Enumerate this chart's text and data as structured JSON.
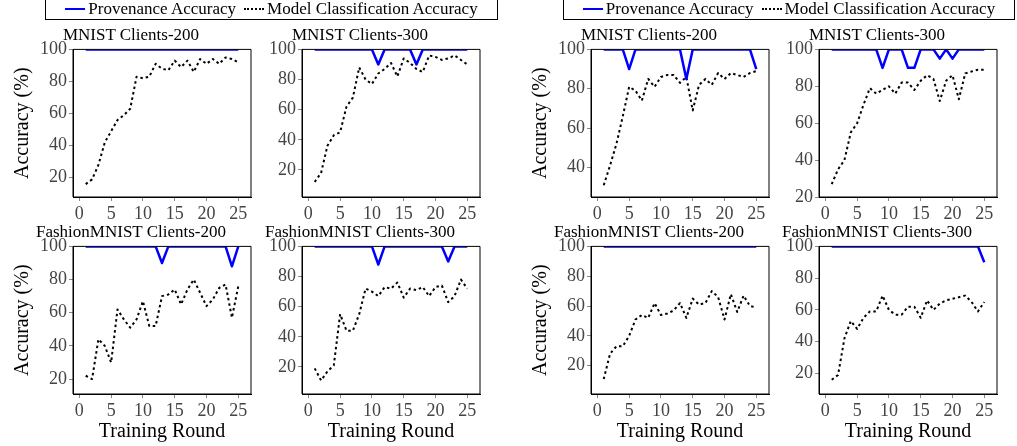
{
  "chart_data": [
    {
      "type": "line",
      "title": "MNIST Clients-200",
      "ylabel": "Accuracy (%)",
      "x": [
        1,
        2,
        3,
        4,
        5,
        6,
        7,
        8,
        9,
        10,
        11,
        12,
        13,
        14,
        15,
        16,
        17,
        18,
        19,
        20,
        21,
        22,
        23,
        24,
        25
      ],
      "xlim": [
        -1,
        27
      ],
      "xticks": [
        0,
        5,
        10,
        15,
        20,
        25
      ],
      "ylim": [
        8,
        100
      ],
      "yticks": [
        20,
        40,
        60,
        80,
        100
      ],
      "legend": "top",
      "marker": "none",
      "series": [
        {
          "name": "Provenance Accuracy",
          "color": "#0000ff",
          "line_style": "solid",
          "values": [
            100,
            100,
            100,
            100,
            100,
            100,
            100,
            100,
            100,
            100,
            100,
            100,
            100,
            100,
            100,
            100,
            100,
            100,
            100,
            100,
            100,
            100,
            100,
            100,
            100
          ]
        },
        {
          "name": "Model Classification Accuracy",
          "color": "#000000",
          "line_style": "dotted",
          "values": [
            16,
            19,
            28,
            42,
            49,
            56,
            59,
            63,
            83,
            82,
            83,
            91,
            88,
            87,
            93,
            89,
            93,
            86,
            94,
            91,
            94,
            91,
            95,
            94,
            92
          ]
        }
      ]
    },
    {
      "type": "line",
      "title": "MNIST Clients-300",
      "x": [
        1,
        2,
        3,
        4,
        5,
        6,
        7,
        8,
        9,
        10,
        11,
        12,
        13,
        14,
        15,
        16,
        17,
        18,
        19,
        20,
        21,
        22,
        23,
        24,
        25
      ],
      "xlim": [
        -1,
        27
      ],
      "xticks": [
        0,
        5,
        10,
        15,
        20,
        25
      ],
      "ylim": [
        2,
        100
      ],
      "yticks": [
        20,
        40,
        60,
        80,
        100
      ],
      "marker": "none",
      "series": [
        {
          "color": "#0000ff",
          "line_style": "solid",
          "values": [
            100,
            100,
            100,
            100,
            100,
            100,
            100,
            100,
            100,
            100,
            90,
            100,
            100,
            100,
            100,
            100,
            90,
            100,
            100,
            100,
            100,
            100,
            100,
            100,
            100
          ]
        },
        {
          "color": "#000000",
          "line_style": "dotted",
          "values": [
            12,
            18,
            36,
            43,
            45,
            62,
            68,
            88,
            80,
            77,
            84,
            87,
            91,
            82,
            94,
            91,
            87,
            85,
            96,
            95,
            93,
            94,
            96,
            93,
            90
          ]
        }
      ]
    },
    {
      "type": "line",
      "title": "MNIST Clients-200",
      "ylabel": "Accuracy (%)",
      "x": [
        1,
        2,
        3,
        4,
        5,
        6,
        7,
        8,
        9,
        10,
        11,
        12,
        13,
        14,
        15,
        16,
        17,
        18,
        19,
        20,
        21,
        22,
        23,
        24,
        25
      ],
      "xlim": [
        -1,
        27
      ],
      "xticks": [
        0,
        5,
        10,
        15,
        20,
        25
      ],
      "ylim": [
        25,
        100
      ],
      "yticks": [
        40,
        60,
        80,
        100
      ],
      "legend": "top",
      "marker": "none",
      "series": [
        {
          "name": "Provenance Accuracy",
          "color": "#0000ff",
          "line_style": "solid",
          "values": [
            100,
            100,
            100,
            100,
            90,
            100,
            100,
            100,
            100,
            100,
            100,
            100,
            100,
            85,
            100,
            100,
            100,
            100,
            100,
            100,
            100,
            100,
            100,
            100,
            90
          ]
        },
        {
          "name": "Model Classification Accuracy",
          "color": "#000000",
          "line_style": "dotted",
          "values": [
            31,
            41,
            52,
            66,
            81,
            79,
            74,
            85,
            81,
            86,
            87,
            87,
            83,
            86,
            69,
            82,
            85,
            82,
            88,
            85,
            88,
            87,
            86,
            88,
            89
          ]
        }
      ]
    },
    {
      "type": "line",
      "title": "MNIST Clients-300",
      "x": [
        1,
        2,
        3,
        4,
        5,
        6,
        7,
        8,
        9,
        10,
        11,
        12,
        13,
        14,
        15,
        16,
        17,
        18,
        19,
        20,
        21,
        22,
        23,
        24,
        25
      ],
      "xlim": [
        -1,
        27
      ],
      "xticks": [
        0,
        5,
        10,
        15,
        20,
        25
      ],
      "ylim": [
        20,
        100
      ],
      "yticks": [
        20,
        40,
        60,
        80,
        100
      ],
      "marker": "none",
      "series": [
        {
          "color": "#0000ff",
          "line_style": "solid",
          "values": [
            100,
            100,
            100,
            100,
            100,
            100,
            100,
            100,
            90,
            100,
            100,
            100,
            90,
            90,
            100,
            100,
            100,
            95,
            100,
            95,
            100,
            100,
            100,
            100,
            100
          ]
        },
        {
          "color": "#000000",
          "line_style": "dotted",
          "values": [
            27,
            35,
            40,
            55,
            60,
            70,
            79,
            76,
            78,
            80,
            76,
            82,
            82,
            78,
            83,
            86,
            84,
            72,
            83,
            86,
            73,
            87,
            88,
            89,
            89
          ]
        }
      ]
    },
    {
      "type": "line",
      "title": "FashionMNIST Clients-200",
      "xlabel": "Training Round",
      "ylabel": "Accuracy (%)",
      "x": [
        1,
        2,
        3,
        4,
        5,
        6,
        7,
        8,
        9,
        10,
        11,
        12,
        13,
        14,
        15,
        16,
        17,
        18,
        19,
        20,
        21,
        22,
        23,
        24,
        25
      ],
      "xlim": [
        -1,
        27
      ],
      "xticks": [
        0,
        5,
        10,
        15,
        20,
        25
      ],
      "ylim": [
        11,
        100
      ],
      "yticks": [
        20,
        40,
        60,
        80,
        100
      ],
      "marker": "none",
      "series": [
        {
          "color": "#0000ff",
          "line_style": "solid",
          "values": [
            100,
            100,
            100,
            100,
            100,
            100,
            100,
            100,
            100,
            100,
            100,
            100,
            90,
            100,
            100,
            100,
            100,
            100,
            100,
            100,
            100,
            100,
            100,
            88,
            100
          ]
        },
        {
          "color": "#000000",
          "line_style": "dotted",
          "values": [
            22,
            20,
            44,
            40,
            30,
            62,
            56,
            51,
            56,
            67,
            52,
            52,
            70,
            71,
            74,
            65,
            74,
            80,
            72,
            64,
            68,
            75,
            77,
            57,
            76
          ]
        }
      ]
    },
    {
      "type": "line",
      "title": "FashionMNIST Clients-300",
      "xlabel": "Training Round",
      "x": [
        1,
        2,
        3,
        4,
        5,
        6,
        7,
        8,
        9,
        10,
        11,
        12,
        13,
        14,
        15,
        16,
        17,
        18,
        19,
        20,
        21,
        22,
        23,
        24,
        25
      ],
      "xlim": [
        -1,
        27
      ],
      "xticks": [
        0,
        5,
        10,
        15,
        20,
        25
      ],
      "ylim": [
        2,
        100
      ],
      "yticks": [
        20,
        40,
        60,
        80,
        100
      ],
      "marker": "none",
      "series": [
        {
          "color": "#0000ff",
          "line_style": "solid",
          "values": [
            100,
            100,
            100,
            100,
            100,
            100,
            100,
            100,
            100,
            100,
            88,
            100,
            100,
            100,
            100,
            100,
            100,
            100,
            100,
            100,
            100,
            90,
            100,
            100,
            100
          ]
        },
        {
          "color": "#000000",
          "line_style": "dotted",
          "values": [
            19,
            11,
            17,
            21,
            55,
            44,
            44,
            55,
            72,
            70,
            67,
            73,
            72,
            76,
            66,
            72,
            71,
            73,
            67,
            73,
            74,
            63,
            67,
            78,
            72
          ]
        }
      ]
    },
    {
      "type": "line",
      "title": "FashionMNIST Clients-200",
      "xlabel": "Training Round",
      "ylabel": "Accuracy (%)",
      "x": [
        1,
        2,
        3,
        4,
        5,
        6,
        7,
        8,
        9,
        10,
        11,
        12,
        13,
        14,
        15,
        16,
        17,
        18,
        19,
        20,
        21,
        22,
        23,
        24,
        25
      ],
      "xlim": [
        -1,
        27
      ],
      "xticks": [
        0,
        5,
        10,
        15,
        20,
        25
      ],
      "ylim": [
        1,
        100
      ],
      "yticks": [
        20,
        40,
        60,
        80,
        100
      ],
      "marker": "none",
      "series": [
        {
          "color": "#0000ff",
          "line_style": "solid",
          "values": [
            100,
            100,
            100,
            100,
            100,
            100,
            100,
            100,
            100,
            100,
            100,
            100,
            100,
            100,
            100,
            100,
            100,
            100,
            100,
            100,
            100,
            100,
            100,
            100,
            100
          ]
        },
        {
          "color": "#000000",
          "line_style": "dotted",
          "values": [
            11,
            28,
            33,
            33,
            40,
            51,
            54,
            52,
            62,
            54,
            55,
            57,
            62,
            52,
            65,
            61,
            62,
            70,
            66,
            51,
            68,
            56,
            67,
            60,
            59
          ]
        }
      ]
    },
    {
      "type": "line",
      "title": "FashionMNIST Clients-300",
      "xlabel": "Training Round",
      "x": [
        1,
        2,
        3,
        4,
        5,
        6,
        7,
        8,
        9,
        10,
        11,
        12,
        13,
        14,
        15,
        16,
        17,
        18,
        19,
        20,
        21,
        22,
        23,
        24,
        25
      ],
      "xlim": [
        -1,
        27
      ],
      "xticks": [
        0,
        5,
        10,
        15,
        20,
        25
      ],
      "ylim": [
        7,
        100
      ],
      "yticks": [
        20,
        40,
        60,
        80,
        100
      ],
      "marker": "none",
      "series": [
        {
          "color": "#0000ff",
          "line_style": "solid",
          "values": [
            100,
            100,
            100,
            100,
            100,
            100,
            100,
            100,
            100,
            100,
            100,
            100,
            100,
            100,
            100,
            100,
            100,
            100,
            100,
            100,
            100,
            100,
            100,
            100,
            90
          ]
        },
        {
          "color": "#000000",
          "line_style": "dotted",
          "values": [
            16,
            19,
            42,
            53,
            48,
            55,
            59,
            59,
            69,
            60,
            57,
            57,
            62,
            62,
            55,
            66,
            60,
            64,
            66,
            67,
            68,
            69,
            65,
            59,
            65
          ]
        }
      ]
    }
  ]
}
